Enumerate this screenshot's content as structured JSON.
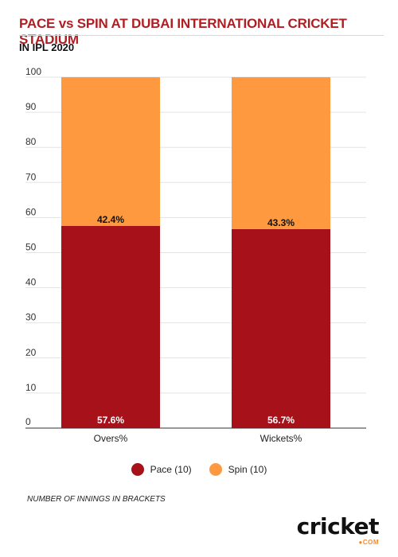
{
  "header": {
    "title": "PACE vs SPIN AT DUBAI INTERNATIONAL CRICKET STADIUM",
    "subtitle": "IN IPL 2020"
  },
  "chart_data": {
    "type": "bar",
    "stacked": true,
    "categories": [
      "Overs%",
      "Wickets%"
    ],
    "series": [
      {
        "name": "Pace (10)",
        "values": [
          57.6,
          56.7
        ],
        "labels": [
          "57.6%",
          "56.7%"
        ],
        "color": "#a6111a",
        "label_color": "#ffffff"
      },
      {
        "name": "Spin (10)",
        "values": [
          42.4,
          43.3
        ],
        "labels": [
          "42.4%",
          "43.3%"
        ],
        "color": "#ff9940",
        "label_color": "#111111"
      }
    ],
    "ylim": [
      0,
      100
    ],
    "yticks": [
      "0",
      "10",
      "20",
      "30",
      "40",
      "50",
      "60",
      "70",
      "80",
      "90",
      "100"
    ],
    "grid": true,
    "legend": "bottom-center"
  },
  "legend": {
    "items": [
      {
        "label": "Pace (10)",
        "color": "#a6111a"
      },
      {
        "label": "Spin (10)",
        "color": "#ff9940"
      }
    ]
  },
  "footnote": "NUMBER OF INNINGS IN BRACKETS",
  "logo": {
    "word": "cricket",
    "sub": "●COM"
  }
}
